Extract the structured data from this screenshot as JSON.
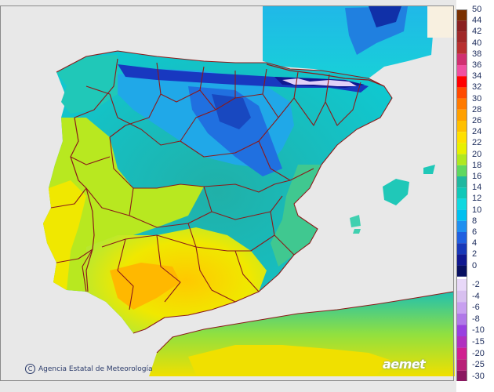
{
  "credit": {
    "text": "Agencia Estatal de Meteorología",
    "icon": "copyright-icon"
  },
  "logo": {
    "text": "aemet"
  },
  "legend": {
    "positive": [
      {
        "label": "50",
        "color": "#7a3000"
      },
      {
        "label": "44",
        "color": "#8a2020"
      },
      {
        "label": "42",
        "color": "#a02828"
      },
      {
        "label": "40",
        "color": "#b83030"
      },
      {
        "label": "38",
        "color": "#d03070"
      },
      {
        "label": "36",
        "color": "#f050a0"
      },
      {
        "label": "34",
        "color": "#ff0000"
      },
      {
        "label": "32",
        "color": "#ff4a00"
      },
      {
        "label": "30",
        "color": "#ff7a00"
      },
      {
        "label": "28",
        "color": "#ffa000"
      },
      {
        "label": "26",
        "color": "#ffc000"
      },
      {
        "label": "24",
        "color": "#ffe000"
      },
      {
        "label": "22",
        "color": "#e8f000"
      },
      {
        "label": "20",
        "color": "#b0e820"
      },
      {
        "label": "18",
        "color": "#60d860"
      },
      {
        "label": "16",
        "color": "#20b8a0"
      },
      {
        "label": "14",
        "color": "#10c8b8"
      },
      {
        "label": "12",
        "color": "#10d8e0"
      },
      {
        "label": "10",
        "color": "#00c0f0"
      },
      {
        "label": "8",
        "color": "#2090f0"
      },
      {
        "label": "6",
        "color": "#2060e0"
      },
      {
        "label": "4",
        "color": "#1838b8"
      },
      {
        "label": "2",
        "color": "#101890"
      },
      {
        "label": "0",
        "color": "#081060"
      }
    ],
    "negative": [
      {
        "label": "-2",
        "color": "#e8d8f8"
      },
      {
        "label": "-4",
        "color": "#d8c0f0"
      },
      {
        "label": "-6",
        "color": "#c8a0f0"
      },
      {
        "label": "-8",
        "color": "#b078e8"
      },
      {
        "label": "-10",
        "color": "#9840e0"
      },
      {
        "label": "-15",
        "color": "#b030c0"
      },
      {
        "label": "-20",
        "color": "#d02090"
      },
      {
        "label": "-25",
        "color": "#b82078"
      },
      {
        "label": "-30",
        "color": "#8a1860"
      }
    ]
  }
}
